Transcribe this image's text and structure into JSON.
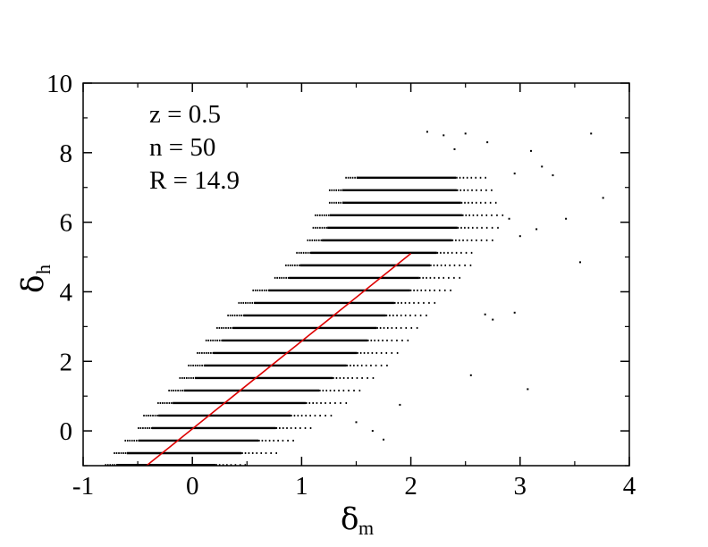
{
  "chart_data": {
    "type": "scatter",
    "title": "",
    "xlabel": "δ",
    "xlabel_sub": "m",
    "ylabel": "δ",
    "ylabel_sub": "h",
    "xlim": [
      -1,
      4
    ],
    "ylim": [
      -1,
      10
    ],
    "xticks": [
      -1,
      0,
      1,
      2,
      3,
      4
    ],
    "yticks": [
      0,
      2,
      4,
      6,
      8,
      10
    ],
    "grid": false,
    "annotations": [
      "z = 0.5",
      "n = 50",
      "R = 14.9"
    ],
    "point_color": "#000000",
    "fit_line": {
      "color": "#dd0000",
      "x": [
        -0.42,
        2.0
      ],
      "y": [
        -1.0,
        5.1
      ]
    },
    "point_rows": [
      {
        "y": -0.98,
        "x_start": -0.8,
        "x_end": 0.5
      },
      {
        "y": -0.64,
        "x_start": -0.72,
        "x_end": 0.78
      },
      {
        "y": -0.28,
        "x_start": -0.62,
        "x_end": 0.95
      },
      {
        "y": 0.08,
        "x_start": -0.5,
        "x_end": 1.12
      },
      {
        "y": 0.44,
        "x_start": -0.45,
        "x_end": 1.28
      },
      {
        "y": 0.8,
        "x_start": -0.32,
        "x_end": 1.42
      },
      {
        "y": 1.16,
        "x_start": -0.22,
        "x_end": 1.55
      },
      {
        "y": 1.52,
        "x_start": -0.12,
        "x_end": 1.68
      },
      {
        "y": 1.88,
        "x_start": -0.04,
        "x_end": 1.82
      },
      {
        "y": 2.24,
        "x_start": 0.04,
        "x_end": 1.92
      },
      {
        "y": 2.6,
        "x_start": 0.12,
        "x_end": 2.02
      },
      {
        "y": 2.96,
        "x_start": 0.22,
        "x_end": 2.1
      },
      {
        "y": 3.32,
        "x_start": 0.32,
        "x_end": 2.18
      },
      {
        "y": 3.68,
        "x_start": 0.42,
        "x_end": 2.25
      },
      {
        "y": 4.04,
        "x_start": 0.55,
        "x_end": 2.4
      },
      {
        "y": 4.4,
        "x_start": 0.75,
        "x_end": 2.45
      },
      {
        "y": 4.76,
        "x_start": 0.85,
        "x_end": 2.55
      },
      {
        "y": 5.12,
        "x_start": 0.95,
        "x_end": 2.6
      },
      {
        "y": 5.48,
        "x_start": 1.05,
        "x_end": 2.75
      },
      {
        "y": 5.84,
        "x_start": 1.1,
        "x_end": 2.8
      },
      {
        "y": 6.2,
        "x_start": 1.12,
        "x_end": 2.85
      },
      {
        "y": 6.56,
        "x_start": 1.25,
        "x_end": 2.8
      },
      {
        "y": 6.92,
        "x_start": 1.25,
        "x_end": 2.75
      },
      {
        "y": 7.28,
        "x_start": 1.4,
        "x_end": 2.7
      }
    ],
    "outlier_points": [
      [
        3.65,
        8.55
      ],
      [
        3.76,
        6.7
      ],
      [
        3.55,
        4.85
      ],
      [
        3.07,
        1.2
      ],
      [
        2.68,
        3.35
      ],
      [
        3.2,
        7.6
      ],
      [
        3.1,
        8.05
      ],
      [
        2.95,
        7.4
      ],
      [
        2.15,
        8.6
      ],
      [
        2.3,
        8.5
      ],
      [
        2.5,
        8.55
      ],
      [
        2.4,
        8.1
      ],
      [
        2.7,
        8.3
      ],
      [
        3.3,
        7.35
      ],
      [
        3.15,
        5.8
      ],
      [
        2.9,
        6.1
      ],
      [
        1.5,
        0.25
      ],
      [
        1.65,
        0.0
      ],
      [
        3.42,
        6.1
      ],
      [
        1.9,
        0.75
      ],
      [
        1.75,
        -0.25
      ],
      [
        2.55,
        1.6
      ],
      [
        2.75,
        3.2
      ],
      [
        2.95,
        3.4
      ],
      [
        3.0,
        5.6
      ]
    ]
  }
}
